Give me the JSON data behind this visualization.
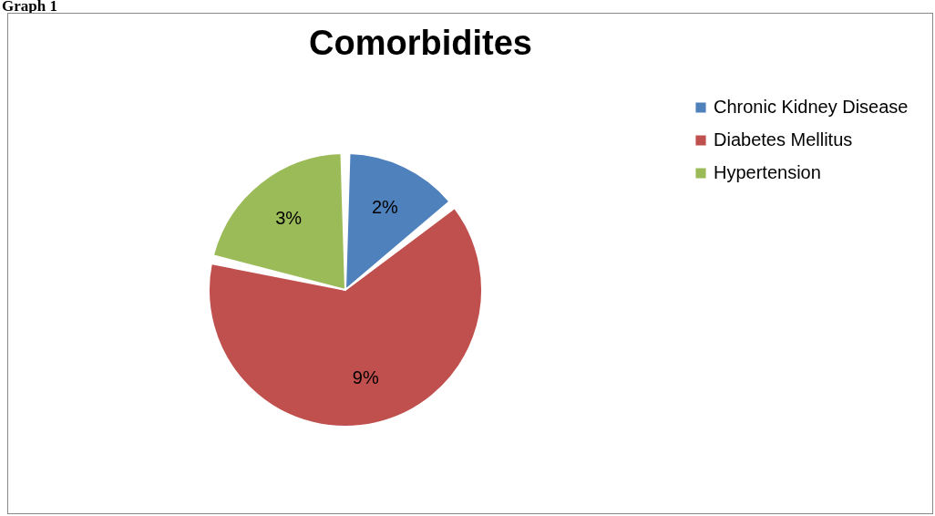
{
  "chart_data": {
    "type": "pie",
    "title": "Comorbidites",
    "categories": [
      "Chronic Kidney Disease",
      "Diabetes Mellitus",
      "Hypertension"
    ],
    "values": [
      2,
      9,
      3
    ],
    "colors": [
      "#4f81bd",
      "#c0504d",
      "#9bbb59"
    ],
    "value_labels": [
      "2%",
      "9%",
      "3%"
    ],
    "legend": "right",
    "annotations": [
      "Graph 1"
    ]
  }
}
